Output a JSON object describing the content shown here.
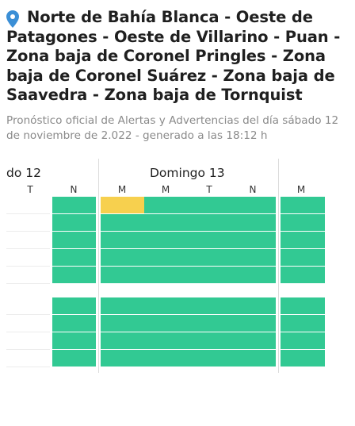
{
  "header": {
    "pin_icon": "location-pin-icon",
    "title": "Norte de Bahía Blanca - Oeste de Patagones - Oeste de Villarino - Puan - Zona baja de Coronel Pringles - Zona baja de Coronel Suárez - Zona baja de Saavedra - Zona baja de Tornquist",
    "subtitle": "Pronóstico oficial de Alertas y Advertencias del día sábado 12 de noviembre de 2.022 - generado a las 18:12 h"
  },
  "days": [
    {
      "label": "do 12",
      "slots": [
        "T",
        "N"
      ]
    },
    {
      "label": "Domingo 13",
      "slots": [
        "M",
        "M",
        "T",
        "N"
      ]
    },
    {
      "label": "",
      "slots": [
        "M"
      ]
    }
  ],
  "colors": {
    "none": "#32c993",
    "yellow": "#f7d04e",
    "pin": "#3b8fd6"
  },
  "grid": {
    "group1": [
      [
        "empty",
        "none",
        "yellow",
        "none",
        "none",
        "none",
        "none"
      ],
      [
        "empty",
        "none",
        "none",
        "none",
        "none",
        "none",
        "none"
      ],
      [
        "empty",
        "none",
        "none",
        "none",
        "none",
        "none",
        "none"
      ],
      [
        "empty",
        "none",
        "none",
        "none",
        "none",
        "none",
        "none"
      ],
      [
        "empty",
        "none",
        "none",
        "none",
        "none",
        "none",
        "none"
      ]
    ],
    "group2": [
      [
        "empty",
        "none",
        "none",
        "none",
        "none",
        "none",
        "none"
      ],
      [
        "empty",
        "none",
        "none",
        "none",
        "none",
        "none",
        "none"
      ],
      [
        "empty",
        "none",
        "none",
        "none",
        "none",
        "none",
        "none"
      ],
      [
        "empty",
        "none",
        "none",
        "none",
        "none",
        "none",
        "none"
      ]
    ]
  }
}
